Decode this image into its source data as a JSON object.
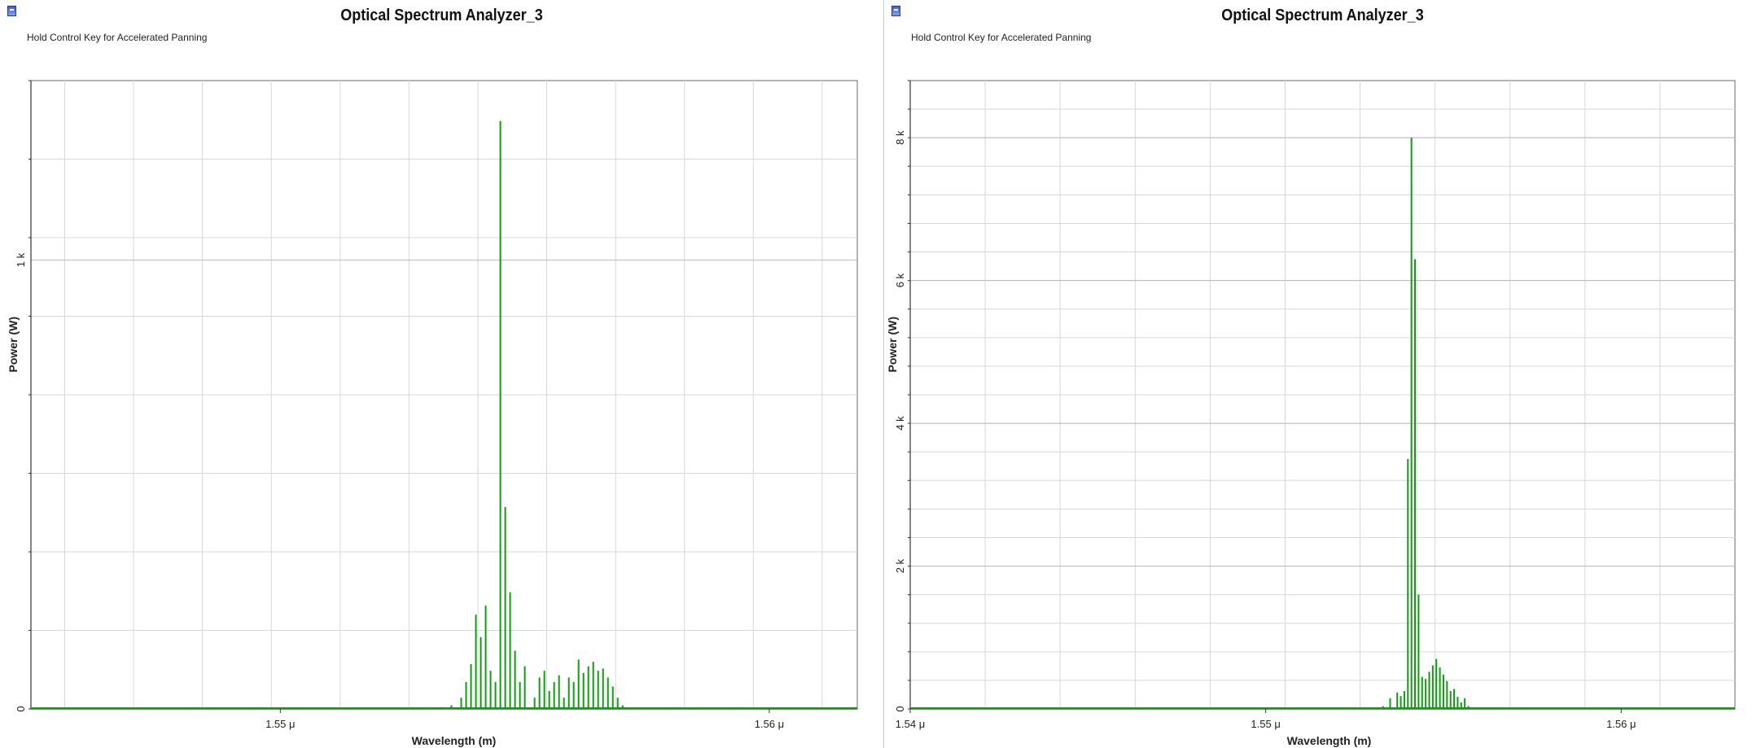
{
  "chart_data": [
    {
      "type": "line",
      "title": "Optical Spectrum Analyzer_3",
      "hint": "Hold Control Key for Accelerated Panning",
      "xlabel": "Wavelength (m)",
      "ylabel": "Power (W)",
      "xlim": [
        1.5449,
        1.5618
      ],
      "ylim": [
        0,
        1400
      ],
      "x_ticks": [
        {
          "value": 1.55,
          "label": "1.55 μ"
        },
        {
          "value": 1.56,
          "label": "1.56 μ"
        }
      ],
      "y_ticks": [
        {
          "value": 0,
          "label": "0"
        },
        {
          "value": 1000,
          "label": "1 k"
        }
      ],
      "grid": true,
      "series_color": "#129a12",
      "peaks": [
        [
          1.553,
          2
        ],
        [
          1.5533,
          4
        ],
        [
          1.5535,
          8
        ],
        [
          1.5537,
          25
        ],
        [
          1.5538,
          60
        ],
        [
          1.5539,
          100
        ],
        [
          1.554,
          210
        ],
        [
          1.5541,
          160
        ],
        [
          1.5542,
          230
        ],
        [
          1.5543,
          85
        ],
        [
          1.5544,
          60
        ],
        [
          1.5545,
          1310
        ],
        [
          1.5546,
          450
        ],
        [
          1.5547,
          260
        ],
        [
          1.5548,
          130
        ],
        [
          1.5549,
          60
        ],
        [
          1.555,
          95
        ],
        [
          1.5552,
          25
        ],
        [
          1.5553,
          70
        ],
        [
          1.5554,
          85
        ],
        [
          1.5555,
          40
        ],
        [
          1.5556,
          60
        ],
        [
          1.5557,
          75
        ],
        [
          1.5558,
          25
        ],
        [
          1.5559,
          70
        ],
        [
          1.556,
          60
        ],
        [
          1.5561,
          110
        ],
        [
          1.5562,
          80
        ],
        [
          1.5563,
          95
        ],
        [
          1.5564,
          105
        ],
        [
          1.5565,
          85
        ],
        [
          1.5566,
          90
        ],
        [
          1.5567,
          70
        ],
        [
          1.5568,
          50
        ],
        [
          1.5569,
          25
        ],
        [
          1.557,
          8
        ],
        [
          1.5572,
          2
        ]
      ]
    },
    {
      "type": "line",
      "title": "Optical Spectrum Analyzer_3",
      "hint": "Hold Control Key for Accelerated Panning",
      "xlabel": "Wavelength (m)",
      "ylabel": "Power (W)",
      "xlim": [
        1.54,
        1.5632
      ],
      "ylim": [
        0,
        8800
      ],
      "x_ticks": [
        {
          "value": 1.54,
          "label": "1.54 μ"
        },
        {
          "value": 1.55,
          "label": "1.55 μ"
        },
        {
          "value": 1.56,
          "label": "1.56 μ"
        }
      ],
      "y_ticks": [
        {
          "value": 0,
          "label": "0"
        },
        {
          "value": 2000,
          "label": "2 k"
        },
        {
          "value": 4000,
          "label": "4 k"
        },
        {
          "value": 6000,
          "label": "6 k"
        },
        {
          "value": 8000,
          "label": "8 k"
        }
      ],
      "grid": true,
      "series_color": "#129a12",
      "peaks": [
        [
          1.553,
          5
        ],
        [
          1.5533,
          40
        ],
        [
          1.5535,
          150
        ],
        [
          1.5537,
          230
        ],
        [
          1.5538,
          180
        ],
        [
          1.5539,
          250
        ],
        [
          1.554,
          3500
        ],
        [
          1.5541,
          8000
        ],
        [
          1.5542,
          6300
        ],
        [
          1.5543,
          1600
        ],
        [
          1.5544,
          450
        ],
        [
          1.5545,
          420
        ],
        [
          1.5546,
          520
        ],
        [
          1.5547,
          610
        ],
        [
          1.5548,
          700
        ],
        [
          1.5549,
          580
        ],
        [
          1.555,
          480
        ],
        [
          1.5551,
          390
        ],
        [
          1.5552,
          250
        ],
        [
          1.5553,
          280
        ],
        [
          1.5554,
          170
        ],
        [
          1.5555,
          90
        ],
        [
          1.5556,
          150
        ],
        [
          1.5557,
          40
        ],
        [
          1.5559,
          6
        ]
      ]
    }
  ]
}
